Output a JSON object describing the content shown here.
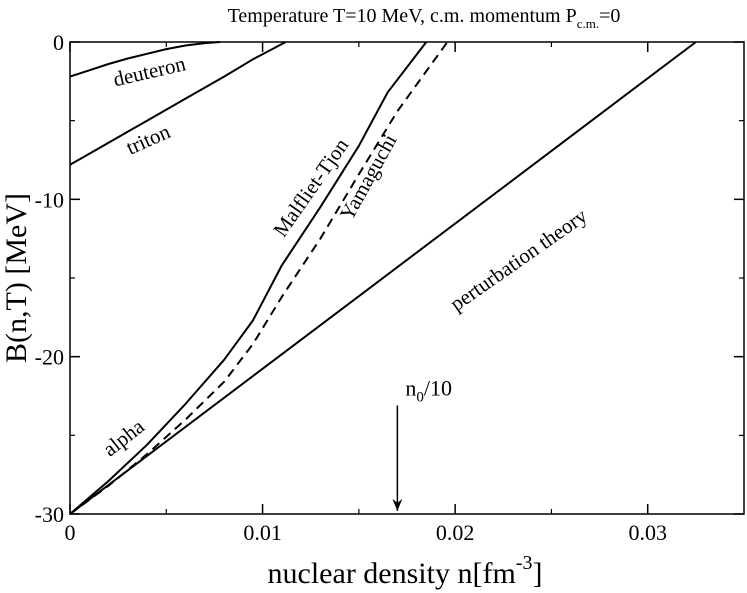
{
  "chart_data": {
    "type": "line",
    "title": "Temperature T=10 MeV,  c.m. momentum P",
    "title_sub": "c.m.",
    "title_tail": "=0",
    "xlabel": "nuclear density n[fm",
    "xlabel_sup": "-3",
    "xlabel_tail": "]",
    "ylabel": "B(n,T) [MeV]",
    "xlim": [
      0,
      0.035
    ],
    "ylim": [
      -30,
      0
    ],
    "xticks": [
      {
        "value": 0,
        "label": "0"
      },
      {
        "value": 0.01,
        "label": "0.01"
      },
      {
        "value": 0.02,
        "label": "0.02"
      },
      {
        "value": 0.03,
        "label": "0.03"
      }
    ],
    "yticks": [
      {
        "value": 0,
        "label": "0"
      },
      {
        "value": -10,
        "label": "-10"
      },
      {
        "value": -20,
        "label": "-20"
      },
      {
        "value": -30,
        "label": "-30"
      }
    ],
    "series": [
      {
        "name": "deuteron",
        "style": "solid",
        "points": [
          [
            0,
            -2.2
          ],
          [
            0.001,
            -1.8
          ],
          [
            0.002,
            -1.4
          ],
          [
            0.003,
            -1.05
          ],
          [
            0.004,
            -0.75
          ],
          [
            0.005,
            -0.45
          ],
          [
            0.006,
            -0.22
          ],
          [
            0.007,
            -0.07
          ],
          [
            0.0078,
            0
          ]
        ]
      },
      {
        "name": "triton",
        "style": "solid",
        "points": [
          [
            0,
            -7.8
          ],
          [
            0.001,
            -7.1
          ],
          [
            0.002,
            -6.4
          ],
          [
            0.004,
            -5.0
          ],
          [
            0.006,
            -3.6
          ],
          [
            0.008,
            -2.2
          ],
          [
            0.0095,
            -1.1
          ],
          [
            0.0112,
            0
          ]
        ]
      },
      {
        "name": "Malfliet-Tjon",
        "style": "solid",
        "points": [
          [
            0,
            -30
          ],
          [
            0.002,
            -27.9
          ],
          [
            0.004,
            -25.6
          ],
          [
            0.006,
            -23.0
          ],
          [
            0.008,
            -20.2
          ],
          [
            0.0095,
            -17.7
          ],
          [
            0.011,
            -14.2
          ],
          [
            0.013,
            -10.5
          ],
          [
            0.015,
            -6.6
          ],
          [
            0.0165,
            -3.2
          ],
          [
            0.0185,
            0
          ]
        ]
      },
      {
        "name": "Yamaguchi",
        "style": "dashed",
        "points": [
          [
            0,
            -30
          ],
          [
            0.002,
            -28.2
          ],
          [
            0.004,
            -26.2
          ],
          [
            0.006,
            -24.0
          ],
          [
            0.008,
            -21.6
          ],
          [
            0.0095,
            -19.2
          ],
          [
            0.011,
            -16.2
          ],
          [
            0.013,
            -12.5
          ],
          [
            0.015,
            -8.4
          ],
          [
            0.017,
            -4.4
          ],
          [
            0.0196,
            0
          ]
        ]
      },
      {
        "name": "perturbation theory",
        "style": "solid",
        "points": [
          [
            0,
            -30
          ],
          [
            0.0325,
            0
          ]
        ]
      }
    ],
    "annotations": [
      {
        "text": "deuteron",
        "x": 0.0042,
        "y": -2.3,
        "angle": -13
      },
      {
        "text": "triton",
        "x": 0.0042,
        "y": -6.6,
        "angle": -24
      },
      {
        "text": "alpha",
        "x": 0.003,
        "y": -25.5,
        "angle": -38
      },
      {
        "text": "Malfliet-Tjon",
        "x": 0.0128,
        "y": -9.5,
        "angle": -55
      },
      {
        "text": "Yamaguchi",
        "x": 0.0158,
        "y": -8.8,
        "angle": -61
      },
      {
        "text": "perturbation theory",
        "x": 0.0235,
        "y": -14.2,
        "angle": -35
      }
    ],
    "marker": {
      "text": "n",
      "sub": "0",
      "tail": "/10",
      "x": 0.017,
      "y_from": -23.1,
      "y_to": -29.8
    },
    "legend": "none",
    "grid": false
  }
}
